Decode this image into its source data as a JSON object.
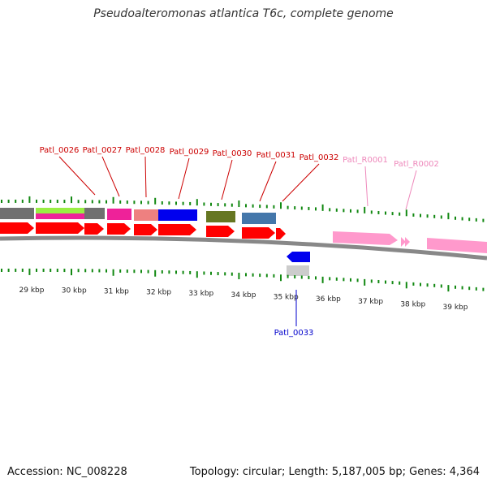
{
  "title": "Pseudoalteromonas atlantica T6c, complete genome",
  "footer": {
    "accession": "Accession: NC_008228",
    "topology": "Topology: circular; Length: 5,187,005 bp; Genes: 4,364"
  },
  "colors": {
    "cds_red": "#ff0000",
    "rna_pink": "#ff99cc",
    "label_red": "#cc0000",
    "label_pink": "#ee88bb",
    "label_blue": "#0000cc",
    "tick_green": "#118811",
    "backbone_gray": "#888888"
  },
  "scale_labels": [
    {
      "text": "29 kbp",
      "kbp": 29
    },
    {
      "text": "30 kbp",
      "kbp": 30
    },
    {
      "text": "31 kbp",
      "kbp": 31
    },
    {
      "text": "32 kbp",
      "kbp": 32
    },
    {
      "text": "33 kbp",
      "kbp": 33
    },
    {
      "text": "34 kbp",
      "kbp": 34
    },
    {
      "text": "35 kbp",
      "kbp": 35
    },
    {
      "text": "36 kbp",
      "kbp": 36
    },
    {
      "text": "37 kbp",
      "kbp": 37
    },
    {
      "text": "38 kbp",
      "kbp": 38
    },
    {
      "text": "39 kbp",
      "kbp": 39
    }
  ],
  "gene_labels": [
    {
      "text": "Patl_0026",
      "type": "cds",
      "strand": "+"
    },
    {
      "text": "Patl_0027",
      "type": "cds",
      "strand": "+"
    },
    {
      "text": "Patl_0028",
      "type": "cds",
      "strand": "+"
    },
    {
      "text": "Patl_0029",
      "type": "cds",
      "strand": "+"
    },
    {
      "text": "Patl_0030",
      "type": "cds",
      "strand": "+"
    },
    {
      "text": "Patl_0031",
      "type": "cds",
      "strand": "+"
    },
    {
      "text": "Patl_0032",
      "type": "cds",
      "strand": "+"
    },
    {
      "text": "Patl_R0001",
      "type": "rna",
      "strand": "+"
    },
    {
      "text": "Patl_R0002",
      "type": "rna",
      "strand": "+"
    },
    {
      "text": "Patl_0033",
      "type": "cds",
      "strand": "-"
    }
  ],
  "cog_colors": [
    "#707070",
    "#99ee44",
    "#ee2299",
    "#707070",
    "#ee2299",
    "#ee8080",
    "#0000ee",
    "#667722",
    "#4477aa",
    "#cccccc",
    "#0000ee"
  ]
}
